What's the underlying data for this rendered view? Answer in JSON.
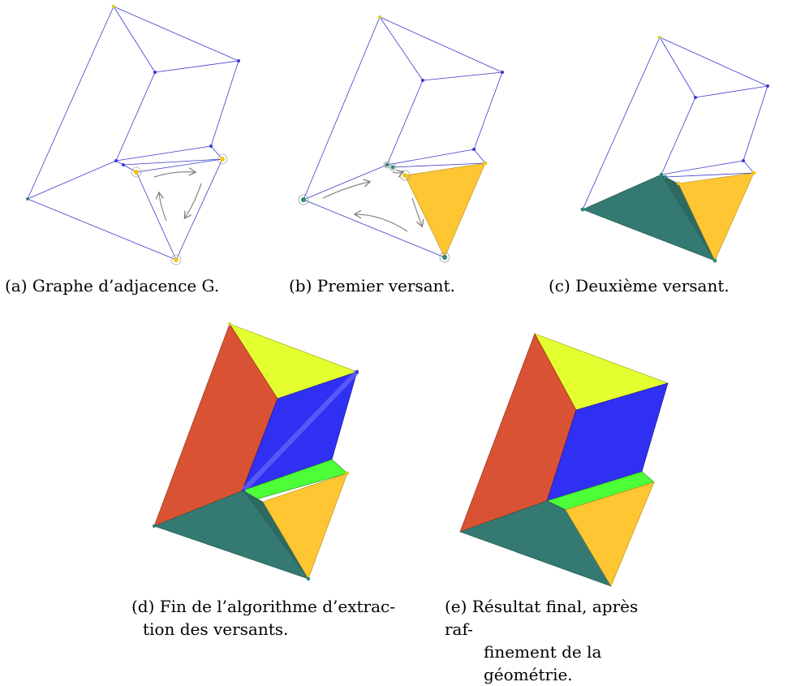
{
  "colors": {
    "edge": "#3030c8",
    "vertex_blue": "#3838d8",
    "vertex_yellow": "#f5c518",
    "vertex_teal": "#2a8a78",
    "face_yellow": "#fdc632",
    "face_teal": "#347a72",
    "face_red": "#d95233",
    "face_lime": "#e4ff2f",
    "face_blue": "#3030f2",
    "face_green": "#4cff38"
  },
  "captions": {
    "a": "(a) Graphe d’adjacence G.",
    "b": "(b) Premier versant.",
    "c": "(c) Deuxième versant.",
    "d_line1": "(d) Fin de l’algorithme d’extrac-",
    "d_line2": "tion des versants.",
    "e_line1": "(e) Résultat final, après raf-",
    "e_line2": "finement de la géométrie."
  }
}
